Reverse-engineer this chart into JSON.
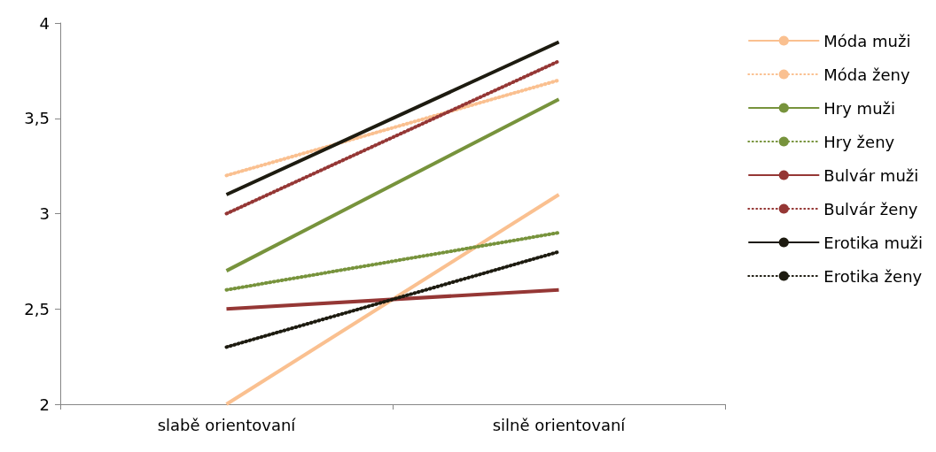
{
  "chart_data": {
    "type": "line",
    "categories": [
      "slabě orientovaní",
      "silně orientovaní"
    ],
    "ylim": [
      2,
      4
    ],
    "yticks": [
      {
        "value": 2,
        "label": "2"
      },
      {
        "value": 2.5,
        "label": "2,5"
      },
      {
        "value": 3,
        "label": "3"
      },
      {
        "value": 3.5,
        "label": "3,5"
      },
      {
        "value": 4,
        "label": "4"
      }
    ],
    "grid": false,
    "legend": "right",
    "marker": "none",
    "series": [
      {
        "name": "Móda muži",
        "color": "#fac090",
        "line_style": "solid",
        "values": [
          2.0,
          3.1
        ]
      },
      {
        "name": "Móda ženy",
        "color": "#fac090",
        "line_style": "dotted",
        "values": [
          3.2,
          3.7
        ]
      },
      {
        "name": "Hry muži",
        "color": "#77933c",
        "line_style": "solid",
        "values": [
          2.7,
          3.6
        ]
      },
      {
        "name": "Hry ženy",
        "color": "#77933c",
        "line_style": "dotted",
        "values": [
          2.6,
          2.9
        ]
      },
      {
        "name": "Bulvár muži",
        "color": "#953735",
        "line_style": "solid",
        "values": [
          2.5,
          2.6
        ]
      },
      {
        "name": "Bulvár ženy",
        "color": "#953735",
        "line_style": "dotted",
        "values": [
          3.0,
          3.8
        ]
      },
      {
        "name": "Erotika muži",
        "color": "#1d1b10",
        "line_style": "solid",
        "values": [
          3.1,
          3.9
        ]
      },
      {
        "name": "Erotika ženy",
        "color": "#1d1b10",
        "line_style": "dotted",
        "values": [
          2.3,
          2.8
        ]
      }
    ]
  }
}
